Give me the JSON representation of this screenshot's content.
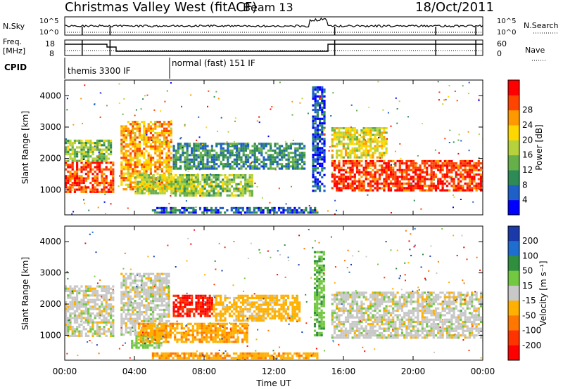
{
  "header": {
    "station": "Christmas Valley West (fitACF)",
    "beam": "Beam 13",
    "date": "18/Oct/2011"
  },
  "top_panels": {
    "nsky_label": "N.Sky",
    "nsky_ticks_left": [
      "10^5",
      "10^0"
    ],
    "nsky_ticks_right": [
      "10^5",
      "10^0"
    ],
    "nsearch_label": "N.Search",
    "freq_label_1": "Freq.",
    "freq_label_2": "[MHz]",
    "freq_ticks": [
      "18",
      "8"
    ],
    "nave_ticks": [
      "60",
      "0"
    ],
    "nave_label": "Nave",
    "cpid_label": "CPID",
    "cpid_modes": [
      "themis 3300 IF",
      "normal (fast) 151 IF"
    ]
  },
  "chart_data": [
    {
      "type": "heatmap",
      "title": "",
      "ylabel": "Slant Range [km]",
      "xlabel": "",
      "x_ticks": [
        "00:00",
        "04:00",
        "08:00",
        "12:00",
        "16:00",
        "20:00",
        "00:00"
      ],
      "y_ticks": [
        1000,
        2000,
        3000,
        4000
      ],
      "ylim": [
        200,
        4500
      ],
      "colorbar_label": "Power [dB]",
      "colorbar_ticks": [
        4,
        8,
        12,
        16,
        20,
        24,
        28
      ],
      "colorbar_colors": [
        "#0000ff",
        "#1e5fc8",
        "#2e8b57",
        "#66b04a",
        "#b5d23c",
        "#ffd700",
        "#ff9900",
        "#ff4400",
        "#ff0000"
      ],
      "echo_regions": [
        {
          "t0": 0.0,
          "t1": 2.8,
          "r0": 950,
          "r1": 1900,
          "value": 27
        },
        {
          "t0": 0.0,
          "t1": 2.6,
          "r0": 1900,
          "r1": 2600,
          "value": 14
        },
        {
          "t0": 3.2,
          "t1": 6.1,
          "r0": 1000,
          "r1": 3200,
          "value": 22
        },
        {
          "t0": 4.0,
          "t1": 7.5,
          "r0": 900,
          "r1": 1500,
          "value": 16
        },
        {
          "t0": 6.2,
          "t1": 13.8,
          "r0": 1700,
          "r1": 2500,
          "value": 9
        },
        {
          "t0": 6.3,
          "t1": 10.8,
          "r0": 850,
          "r1": 1500,
          "value": 14
        },
        {
          "t0": 5.0,
          "t1": 14.5,
          "r0": 250,
          "r1": 450,
          "value": 6
        },
        {
          "t0": 14.2,
          "t1": 14.9,
          "r0": 1000,
          "r1": 4300,
          "value": 5
        },
        {
          "t0": 15.3,
          "t1": 24.0,
          "r0": 950,
          "r1": 1950,
          "value": 28
        },
        {
          "t0": 15.3,
          "t1": 18.5,
          "r0": 2000,
          "r1": 3000,
          "value": 18
        }
      ]
    },
    {
      "type": "heatmap",
      "title": "",
      "ylabel": "Slant Range [km]",
      "xlabel": "Time UT",
      "x_ticks": [
        "00:00",
        "04:00",
        "08:00",
        "12:00",
        "16:00",
        "20:00",
        "00:00"
      ],
      "y_ticks": [
        1000,
        2000,
        3000,
        4000
      ],
      "ylim": [
        200,
        4500
      ],
      "colorbar_label": "Velocity [m s⁻¹]",
      "colorbar_ticks": [
        "200",
        "100",
        "50",
        "15",
        "-15",
        "-50",
        "-100",
        "-200"
      ],
      "colorbar_colors": [
        "#1a3aaa",
        "#1e6ecf",
        "#2f8f3f",
        "#73c841",
        "#c8c8c8",
        "#ffb000",
        "#ff7700",
        "#ff3300",
        "#ff0000"
      ],
      "echo_regions": [
        {
          "t0": 0.0,
          "t1": 2.8,
          "r0": 950,
          "r1": 2600,
          "value": 0
        },
        {
          "t0": 3.2,
          "t1": 6.0,
          "r0": 1000,
          "r1": 3000,
          "value": 0
        },
        {
          "t0": 3.8,
          "t1": 5.5,
          "r0": 600,
          "r1": 1000,
          "value": 30
        },
        {
          "t0": 4.2,
          "t1": 10.5,
          "r0": 800,
          "r1": 1400,
          "value": -40
        },
        {
          "t0": 6.2,
          "t1": 8.5,
          "r0": 1600,
          "r1": 2300,
          "value": -200
        },
        {
          "t0": 8.5,
          "t1": 13.5,
          "r0": 1500,
          "r1": 2300,
          "value": -30
        },
        {
          "t0": 5.0,
          "t1": 14.5,
          "r0": 250,
          "r1": 450,
          "value": -40
        },
        {
          "t0": 14.3,
          "t1": 14.9,
          "r0": 1000,
          "r1": 3700,
          "value": 40
        },
        {
          "t0": 15.3,
          "t1": 24.0,
          "r0": 950,
          "r1": 2400,
          "value": 0
        }
      ]
    }
  ]
}
